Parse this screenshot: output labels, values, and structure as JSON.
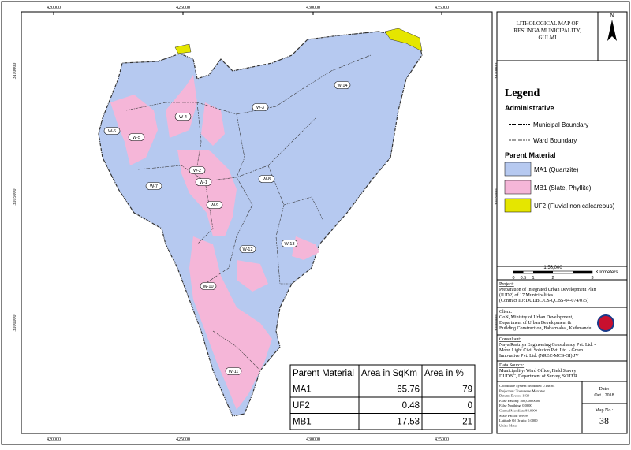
{
  "map": {
    "grid_labels_x": [
      420000,
      425000,
      430000,
      435000
    ],
    "grid_labels_y": [
      3110000,
      3105000,
      3100000
    ],
    "wards": [
      "W-1",
      "W-2",
      "W-3",
      "W-4",
      "W-5",
      "W-6",
      "W-7",
      "W-8",
      "W-9",
      "W-10",
      "W-11",
      "W-12",
      "W-13",
      "W-14"
    ]
  },
  "title": "LITHOLOGICAL MAP OF RESUNGA MUNICIPALITY, GULMI",
  "north": "N",
  "legend": {
    "title": "Legend",
    "administrative": "Administrative",
    "municipal": "Municipal Boundary",
    "ward": "Ward Boundary",
    "parent_material": "Parent Material",
    "items": [
      "MA1 (Quartzite)",
      "MB1 (Slate, Phyllite)",
      "UF2 (Fluvial non calcareous)"
    ]
  },
  "scale": {
    "ratio": "1:58,000",
    "unit": "Kilometers",
    "ticks": [
      "0",
      "0.5",
      "1",
      "2",
      "3"
    ]
  },
  "project": {
    "heading": "Project:",
    "text": [
      "Preparation of Integrated Urban Development Plan",
      "(IUDP) of 17 Municipalities",
      "(Contract ID: DUDBC/CS-QCBS-04-074/075)"
    ]
  },
  "client": {
    "heading": "Client:",
    "text": [
      "GoN, Ministry of Urban Development,",
      "Department of Urban Development &",
      "Building Construction, Babarmahal, Kathmandu"
    ]
  },
  "consultant": {
    "heading": "Consultant:",
    "text": [
      "Naya Rastriya Engineering Consultancy Pvt. Ltd. -",
      "Moon Light Civil Solution Pvt. Ltd. - Green",
      "Innovative Pvt. Ltd. (NREC-MCS-GI) JV"
    ]
  },
  "data_source": {
    "heading": "Data Source:",
    "text": [
      "Municipality/ Ward Office, Field Survey",
      "DUDBC, Department of Survey, SOTER"
    ]
  },
  "coordinate_info": [
    "Coordinate System: Modified UTM 84",
    "Projection: Transverse Mercator",
    "Datum: Everest 1830",
    "False Easting: 500,000.0000",
    "False Northing: 0.0000",
    "Central Meridian: 84.0000",
    "Scale Factor: 0.9999",
    "Latitude Of Origin: 0.0000",
    "Units: Meter"
  ],
  "date": {
    "label": "Date:",
    "value": "Oct., 2018"
  },
  "map_no": {
    "label": "Map No.:",
    "value": "38"
  },
  "table": {
    "header": [
      "Parent Material",
      "Area in SqKm",
      "Area in %"
    ],
    "rows": [
      [
        "MA1",
        65.76,
        79
      ],
      [
        "UF2",
        0.48,
        0
      ],
      [
        "MB1",
        17.53,
        21
      ]
    ]
  }
}
